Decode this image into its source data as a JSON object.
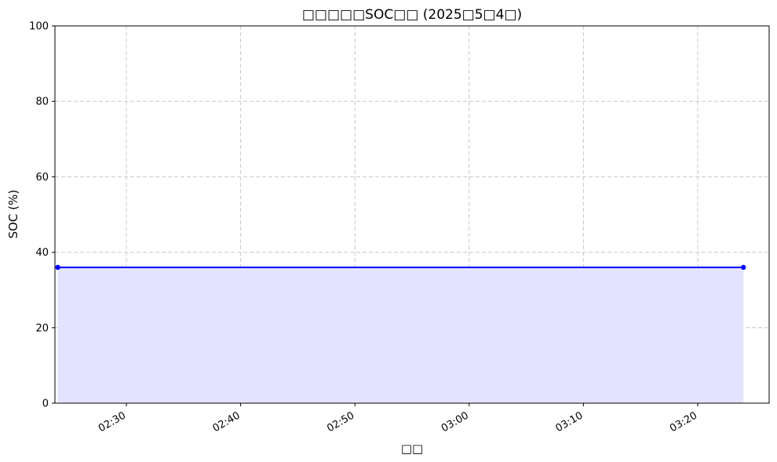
{
  "chart_data": {
    "type": "line",
    "title": "□□□□□SOC□□ (2025□5□4□)",
    "xlabel": "□□",
    "ylabel": "SOC (%)",
    "x_tick_labels": [
      "02:30",
      "02:40",
      "02:50",
      "03:00",
      "03:10",
      "03:20"
    ],
    "y_tick_labels": [
      "0",
      "20",
      "40",
      "60",
      "80",
      "100"
    ],
    "xlim": [
      "02:23:45",
      "03:26:15"
    ],
    "ylim": [
      0,
      100
    ],
    "grid": true,
    "fill_under": true,
    "series": [
      {
        "x": [
          "02:24",
          "03:24"
        ],
        "y": [
          36,
          36
        ]
      }
    ],
    "colors": {
      "line": "#0000ff",
      "fill": "#e3e3ff",
      "grid": "#c8c8c8"
    }
  }
}
